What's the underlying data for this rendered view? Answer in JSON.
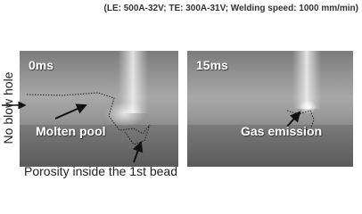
{
  "header": {
    "conditions": "(LE: 500A-32V; TE: 300A-31V; Welding speed: 1000 mm/min)"
  },
  "side_label": "No blow hole",
  "panels": [
    {
      "time": "0ms",
      "label": "Molten pool"
    },
    {
      "time": "15ms",
      "label": "Gas emission"
    }
  ],
  "caption": "Porosity inside the 1st bead"
}
